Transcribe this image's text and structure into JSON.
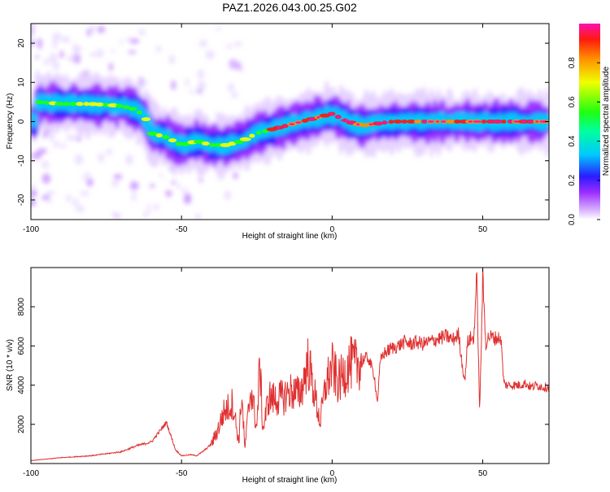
{
  "title": "PAZ1.2026.043.00.25.G02",
  "colors": {
    "snr_line": "#e03030",
    "frame": "#000000",
    "background": "#ffffff"
  },
  "chart_data": [
    {
      "type": "heatmap",
      "title": "PAZ1.2026.043.00.25.G02",
      "xlabel": "Height of straight line (km)",
      "ylabel": "Frequency (Hz)",
      "xlim": [
        -100,
        72
      ],
      "ylim": [
        -25,
        25
      ],
      "xticks": [
        -100,
        -50,
        0,
        50
      ],
      "yticks": [
        -20,
        -10,
        0,
        10,
        20
      ],
      "colorbar": {
        "label": "Normalized spectral amplitude",
        "range": [
          0,
          1
        ],
        "ticks": [
          0.0,
          0.2,
          0.4,
          0.6,
          0.8
        ],
        "colors": [
          "#ffffff",
          "#d8b0ff",
          "#9a2cff",
          "#2a1cff",
          "#00c8ff",
          "#00ffa0",
          "#20ff10",
          "#f0ff00",
          "#ff9000",
          "#ff1a10",
          "#ff10b0"
        ]
      },
      "ridge_frequency_hz": [
        {
          "x": -98,
          "y": 5
        },
        {
          "x": -90,
          "y": 4.5
        },
        {
          "x": -80,
          "y": 4.5
        },
        {
          "x": -70,
          "y": 4
        },
        {
          "x": -65,
          "y": 3
        },
        {
          "x": -62,
          "y": 1
        },
        {
          "x": -60,
          "y": -3
        },
        {
          "x": -55,
          "y": -4
        },
        {
          "x": -50,
          "y": -6
        },
        {
          "x": -45,
          "y": -5
        },
        {
          "x": -40,
          "y": -6
        },
        {
          "x": -35,
          "y": -6
        },
        {
          "x": -30,
          "y": -5
        },
        {
          "x": -25,
          "y": -3
        },
        {
          "x": -20,
          "y": -2
        },
        {
          "x": -15,
          "y": -1
        },
        {
          "x": -10,
          "y": 0
        },
        {
          "x": -5,
          "y": 1
        },
        {
          "x": 0,
          "y": 2
        },
        {
          "x": 5,
          "y": 0
        },
        {
          "x": 10,
          "y": -1
        },
        {
          "x": 20,
          "y": 0
        },
        {
          "x": 30,
          "y": 0
        },
        {
          "x": 40,
          "y": 0
        },
        {
          "x": 50,
          "y": 0
        },
        {
          "x": 60,
          "y": 0
        },
        {
          "x": 72,
          "y": 0
        }
      ]
    },
    {
      "type": "line",
      "xlabel": "Height of straight line (km)",
      "ylabel": "SNR (10 * v/v)",
      "xlim": [
        -100,
        72
      ],
      "ylim": [
        0,
        10000
      ],
      "xticks": [
        -100,
        -50,
        0,
        50
      ],
      "yticks": [
        2000,
        4000,
        6000,
        8000
      ],
      "series": [
        {
          "name": "SNR",
          "x": [
            -100,
            -90,
            -80,
            -70,
            -65,
            -60,
            -57,
            -55,
            -52,
            -50,
            -47,
            -45,
            -43,
            -40,
            -38,
            -36,
            -33,
            -31,
            -30,
            -29,
            -27,
            -25,
            -24,
            -23,
            -21,
            -20,
            -18,
            -16,
            -14,
            -12,
            -11,
            -10,
            -8,
            -6,
            -4,
            -2,
            0,
            2,
            4,
            6,
            8,
            10,
            12,
            14,
            15,
            16,
            17,
            18,
            20,
            22,
            24,
            26,
            28,
            30,
            32,
            34,
            36,
            38,
            40,
            42,
            43,
            44,
            45,
            46,
            47,
            48,
            49,
            50,
            51,
            52,
            54,
            56,
            57,
            58,
            60,
            62,
            64,
            66,
            68,
            70,
            72
          ],
          "y": [
            150,
            300,
            400,
            600,
            900,
            1100,
            1700,
            2100,
            700,
            400,
            450,
            400,
            600,
            1000,
            1700,
            2600,
            3100,
            1100,
            3600,
            700,
            3900,
            1800,
            5200,
            1700,
            3400,
            3300,
            3300,
            3400,
            3700,
            3600,
            3500,
            3900,
            5200,
            3700,
            2100,
            4100,
            4900,
            4100,
            4600,
            5100,
            5000,
            5300,
            5400,
            4500,
            3100,
            5200,
            5600,
            5700,
            5900,
            6000,
            6200,
            6100,
            6200,
            6100,
            6200,
            6300,
            6400,
            6500,
            6300,
            6600,
            5300,
            4200,
            6200,
            6400,
            6300,
            9600,
            2500,
            9500,
            6100,
            6500,
            6400,
            6400,
            4100,
            4000,
            4000,
            4000,
            4100,
            3900,
            4000,
            3900,
            3900
          ]
        }
      ]
    }
  ]
}
